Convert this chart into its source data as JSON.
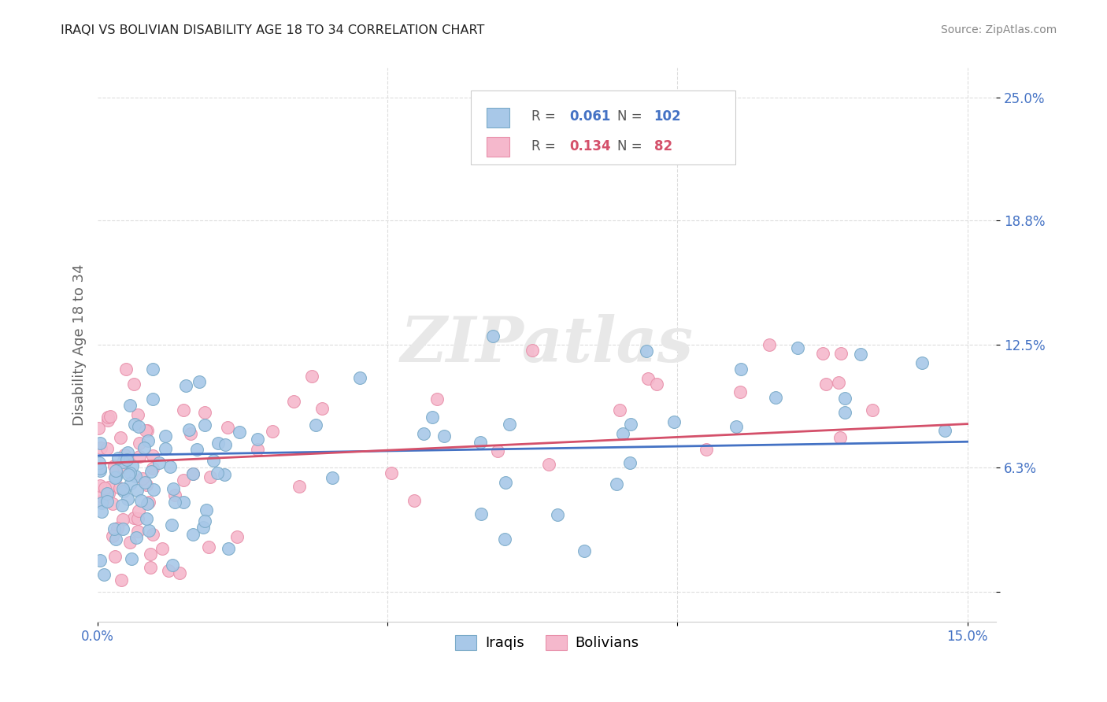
{
  "title": "IRAQI VS BOLIVIAN DISABILITY AGE 18 TO 34 CORRELATION CHART",
  "source": "Source: ZipAtlas.com",
  "ylabel": "Disability Age 18 to 34",
  "xlim": [
    0.0,
    0.155
  ],
  "ylim": [
    -0.015,
    0.265
  ],
  "ytick_positions": [
    0.0,
    0.063,
    0.125,
    0.188,
    0.25
  ],
  "yticklabels": [
    "",
    "6.3%",
    "12.5%",
    "18.8%",
    "25.0%"
  ],
  "xtick_positions": [
    0.0,
    0.05,
    0.1,
    0.15
  ],
  "xticklabels": [
    "0.0%",
    "",
    "",
    "15.0%"
  ],
  "legend_R_iraqis": "0.061",
  "legend_N_iraqis": "102",
  "legend_R_bolivians": "0.134",
  "legend_N_bolivians": "82",
  "iraqis_color": "#a8c8e8",
  "bolivians_color": "#f5b8cc",
  "iraqis_edge_color": "#7aaac8",
  "bolivians_edge_color": "#e890aa",
  "iraqis_line_color": "#4472c4",
  "bolivians_line_color": "#d4506a",
  "bg_color": "#ffffff",
  "grid_color": "#dddddd",
  "title_color": "#222222",
  "tick_color": "#4472c4",
  "ylabel_color": "#666666",
  "source_color": "#888888",
  "watermark_color": "#eeeeee",
  "watermark_text": "ZIPatlas",
  "iraqis_label": "Iraqis",
  "bolivians_label": "Bolivians",
  "legend_text_color": "#555555",
  "trend_iraqis_start_y": 0.069,
  "trend_iraqis_end_y": 0.076,
  "trend_bolivians_start_y": 0.065,
  "trend_bolivians_end_y": 0.085
}
